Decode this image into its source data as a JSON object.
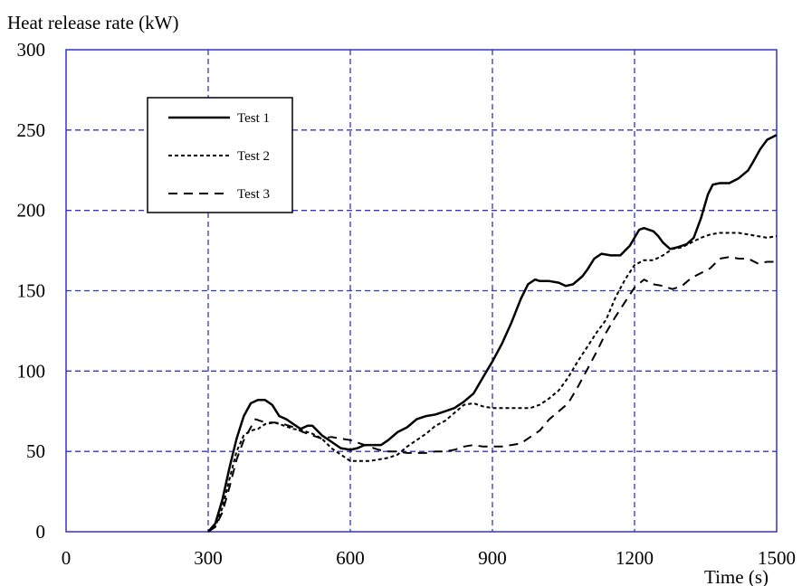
{
  "chart_data": {
    "type": "line",
    "title": "",
    "ylabel": "Heat release rate (kW)",
    "xlabel": "Time (s)",
    "xlim": [
      0,
      1500
    ],
    "ylim": [
      0,
      300
    ],
    "x_ticks": [
      "0",
      "300",
      "600",
      "900",
      "1200",
      "1500"
    ],
    "y_ticks": [
      "0",
      "50",
      "100",
      "150",
      "200",
      "250",
      "300"
    ],
    "grid": true,
    "grid_color": "#3333cc",
    "legend_position": "top-left",
    "series": [
      {
        "name": "Test 1",
        "style": "solid",
        "points": [
          [
            300,
            0
          ],
          [
            315,
            5
          ],
          [
            330,
            20
          ],
          [
            345,
            40
          ],
          [
            360,
            58
          ],
          [
            375,
            72
          ],
          [
            390,
            80
          ],
          [
            405,
            82
          ],
          [
            420,
            82
          ],
          [
            435,
            79
          ],
          [
            450,
            72
          ],
          [
            465,
            70
          ],
          [
            480,
            67
          ],
          [
            495,
            64
          ],
          [
            510,
            66
          ],
          [
            520,
            66
          ],
          [
            540,
            60
          ],
          [
            560,
            56
          ],
          [
            580,
            52
          ],
          [
            600,
            51
          ],
          [
            615,
            52
          ],
          [
            630,
            54
          ],
          [
            650,
            54
          ],
          [
            665,
            54
          ],
          [
            680,
            57
          ],
          [
            700,
            62
          ],
          [
            720,
            65
          ],
          [
            740,
            70
          ],
          [
            760,
            72
          ],
          [
            780,
            73
          ],
          [
            800,
            75
          ],
          [
            820,
            77
          ],
          [
            840,
            81
          ],
          [
            860,
            86
          ],
          [
            880,
            96
          ],
          [
            900,
            106
          ],
          [
            920,
            117
          ],
          [
            940,
            130
          ],
          [
            960,
            145
          ],
          [
            975,
            154
          ],
          [
            990,
            157
          ],
          [
            1000,
            156
          ],
          [
            1020,
            156
          ],
          [
            1040,
            155
          ],
          [
            1055,
            153
          ],
          [
            1070,
            154
          ],
          [
            1090,
            159
          ],
          [
            1100,
            163
          ],
          [
            1115,
            170
          ],
          [
            1130,
            173
          ],
          [
            1150,
            172
          ],
          [
            1170,
            172
          ],
          [
            1190,
            178
          ],
          [
            1210,
            188
          ],
          [
            1220,
            189
          ],
          [
            1240,
            187
          ],
          [
            1250,
            184
          ],
          [
            1260,
            180
          ],
          [
            1275,
            176
          ],
          [
            1290,
            177
          ],
          [
            1310,
            179
          ],
          [
            1325,
            183
          ],
          [
            1340,
            195
          ],
          [
            1355,
            210
          ],
          [
            1365,
            216
          ],
          [
            1380,
            217
          ],
          [
            1400,
            217
          ],
          [
            1420,
            220
          ],
          [
            1440,
            225
          ],
          [
            1450,
            230
          ],
          [
            1465,
            238
          ],
          [
            1480,
            244
          ],
          [
            1500,
            247
          ]
        ]
      },
      {
        "name": "Test 2",
        "style": "dotted",
        "points": [
          [
            300,
            0
          ],
          [
            315,
            3
          ],
          [
            330,
            15
          ],
          [
            345,
            33
          ],
          [
            360,
            50
          ],
          [
            375,
            60
          ],
          [
            390,
            63
          ],
          [
            405,
            64
          ],
          [
            420,
            67
          ],
          [
            440,
            68
          ],
          [
            460,
            66
          ],
          [
            480,
            64
          ],
          [
            500,
            63
          ],
          [
            520,
            61
          ],
          [
            540,
            58
          ],
          [
            560,
            52
          ],
          [
            580,
            48
          ],
          [
            600,
            44
          ],
          [
            620,
            44
          ],
          [
            640,
            44
          ],
          [
            660,
            45
          ],
          [
            680,
            46
          ],
          [
            700,
            48
          ],
          [
            720,
            53
          ],
          [
            740,
            57
          ],
          [
            760,
            61
          ],
          [
            780,
            66
          ],
          [
            800,
            69
          ],
          [
            820,
            74
          ],
          [
            840,
            79
          ],
          [
            860,
            80
          ],
          [
            880,
            78
          ],
          [
            900,
            77
          ],
          [
            940,
            77
          ],
          [
            980,
            77
          ],
          [
            1000,
            79
          ],
          [
            1020,
            83
          ],
          [
            1040,
            88
          ],
          [
            1060,
            96
          ],
          [
            1080,
            106
          ],
          [
            1100,
            115
          ],
          [
            1120,
            124
          ],
          [
            1140,
            132
          ],
          [
            1160,
            146
          ],
          [
            1180,
            157
          ],
          [
            1200,
            166
          ],
          [
            1220,
            169
          ],
          [
            1240,
            169
          ],
          [
            1260,
            172
          ],
          [
            1280,
            176
          ],
          [
            1300,
            177
          ],
          [
            1320,
            180
          ],
          [
            1340,
            183
          ],
          [
            1360,
            185
          ],
          [
            1380,
            186
          ],
          [
            1400,
            186
          ],
          [
            1420,
            186
          ],
          [
            1440,
            185
          ],
          [
            1460,
            184
          ],
          [
            1480,
            183
          ],
          [
            1500,
            184
          ]
        ]
      },
      {
        "name": "Test 3",
        "style": "dashed",
        "points": [
          [
            300,
            0
          ],
          [
            315,
            3
          ],
          [
            330,
            12
          ],
          [
            345,
            28
          ],
          [
            360,
            45
          ],
          [
            375,
            57
          ],
          [
            390,
            65
          ],
          [
            400,
            70
          ],
          [
            420,
            68
          ],
          [
            440,
            68
          ],
          [
            460,
            67
          ],
          [
            480,
            65
          ],
          [
            500,
            62
          ],
          [
            520,
            60
          ],
          [
            540,
            58
          ],
          [
            560,
            59
          ],
          [
            580,
            58
          ],
          [
            600,
            57
          ],
          [
            620,
            55
          ],
          [
            640,
            53
          ],
          [
            660,
            51
          ],
          [
            680,
            50
          ],
          [
            700,
            50
          ],
          [
            720,
            49
          ],
          [
            740,
            49
          ],
          [
            760,
            49
          ],
          [
            780,
            50
          ],
          [
            800,
            50
          ],
          [
            820,
            51
          ],
          [
            840,
            53
          ],
          [
            860,
            54
          ],
          [
            880,
            53
          ],
          [
            900,
            53
          ],
          [
            920,
            53
          ],
          [
            940,
            54
          ],
          [
            960,
            55
          ],
          [
            980,
            59
          ],
          [
            1000,
            63
          ],
          [
            1020,
            70
          ],
          [
            1040,
            75
          ],
          [
            1060,
            80
          ],
          [
            1080,
            90
          ],
          [
            1100,
            101
          ],
          [
            1120,
            112
          ],
          [
            1140,
            124
          ],
          [
            1160,
            134
          ],
          [
            1180,
            143
          ],
          [
            1200,
            152
          ],
          [
            1220,
            157
          ],
          [
            1240,
            154
          ],
          [
            1260,
            153
          ],
          [
            1280,
            151
          ],
          [
            1300,
            153
          ],
          [
            1320,
            158
          ],
          [
            1340,
            161
          ],
          [
            1360,
            164
          ],
          [
            1380,
            170
          ],
          [
            1400,
            171
          ],
          [
            1420,
            170
          ],
          [
            1440,
            170
          ],
          [
            1460,
            167
          ],
          [
            1480,
            168
          ],
          [
            1500,
            168
          ]
        ]
      }
    ]
  }
}
